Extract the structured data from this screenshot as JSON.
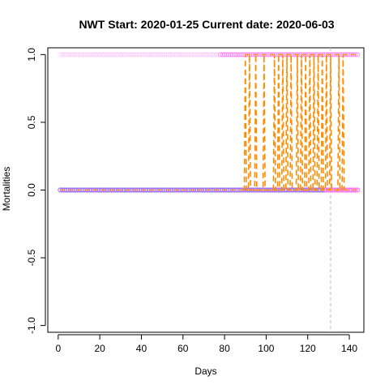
{
  "chart_data": {
    "type": "line",
    "title": "NWT Start:  2020-01-25   Current date:  2020-06-03",
    "xlabel": "Days",
    "ylabel": "Mortalities",
    "xlim": [
      -5,
      147
    ],
    "ylim": [
      -1.05,
      1.05
    ],
    "x_ticks": [
      0,
      20,
      40,
      60,
      80,
      100,
      120,
      140
    ],
    "y_ticks": [
      -1.0,
      -0.5,
      0.0,
      0.5,
      1.0
    ],
    "y_tick_labels": [
      "-1.0",
      "-0.5",
      "0.0",
      "0.5",
      "1.0"
    ],
    "current_day": 131,
    "grid": false,
    "colors": {
      "points_top": "#ff66ff",
      "points_bottom": "#9966ff",
      "baseline": "#ff9933",
      "spikes": "#ff8c00",
      "current_line": "#bbbbbb"
    },
    "series": [
      {
        "kind": "points",
        "x_start": 1,
        "x_end": 144,
        "y": 1.0
      },
      {
        "kind": "points",
        "x_start": 1,
        "x_end": 144,
        "y": 0.0
      },
      {
        "kind": "dashed-line",
        "x_start": 1,
        "x_end": 144,
        "y": 0.0
      },
      {
        "kind": "spikes",
        "x": [
          90,
          92,
          95,
          99,
          104,
          106,
          108,
          110,
          112,
          115,
          117,
          119,
          121,
          123,
          125,
          127,
          129,
          131,
          135,
          137
        ],
        "y_peak": 1.0
      }
    ]
  }
}
